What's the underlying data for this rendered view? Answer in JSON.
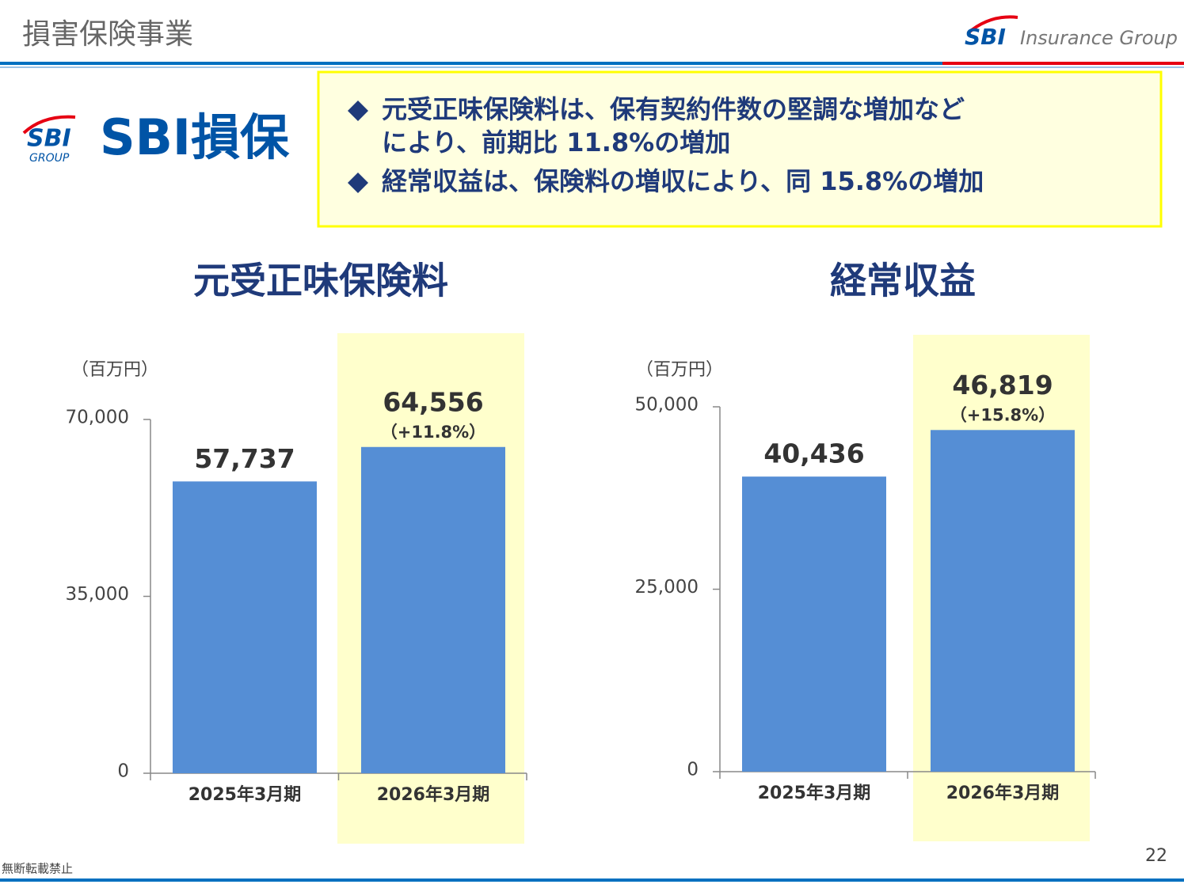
{
  "header": {
    "title": "損害保険事業",
    "brand_logo": "SBI",
    "brand": "Insurance Group"
  },
  "company": {
    "logo_text": "SBI",
    "logo_sub": "GROUP",
    "name": "SBI損保"
  },
  "highlights": [
    [
      "元受正味保険料は、保有契約件数の堅調な増加など",
      "により、前期比 11.8%の増加"
    ],
    [
      "経常収益は、保険料の増収により、同 15.8%の増加"
    ]
  ],
  "chart_data": [
    {
      "type": "bar",
      "title": "元受正味保険料",
      "unit_label": "（百万円）",
      "categories": [
        "2025年3月期",
        "2026年3月期"
      ],
      "values": [
        57737,
        64556
      ],
      "value_labels": [
        "57,737",
        "64,556"
      ],
      "change_labels": [
        null,
        "（+11.8%）"
      ],
      "color": "#558ed5",
      "highlight_index": 1,
      "highlight_color": "#ffffcc",
      "ylim": [
        0,
        70000
      ],
      "yticks": [
        0,
        {
          "value": 35000,
          "label": "35,000"
        },
        {
          "value": 70000,
          "label": "70,000"
        }
      ]
    },
    {
      "type": "bar",
      "title": "経常収益",
      "unit_label": "（百万円）",
      "categories": [
        "2025年3月期",
        "2026年3月期"
      ],
      "values": [
        40436,
        46819
      ],
      "value_labels": [
        "40,436",
        "46,819"
      ],
      "change_labels": [
        null,
        "（+15.8%）"
      ],
      "color": "#558ed5",
      "highlight_index": 1,
      "highlight_color": "#ffffcc",
      "ylim": [
        0,
        50000
      ],
      "yticks": [
        0,
        {
          "value": 25000,
          "label": "25,000"
        },
        {
          "value": 50000,
          "label": "50,000"
        }
      ]
    }
  ],
  "footer": {
    "notice": "無断転載禁止",
    "page": "22"
  }
}
